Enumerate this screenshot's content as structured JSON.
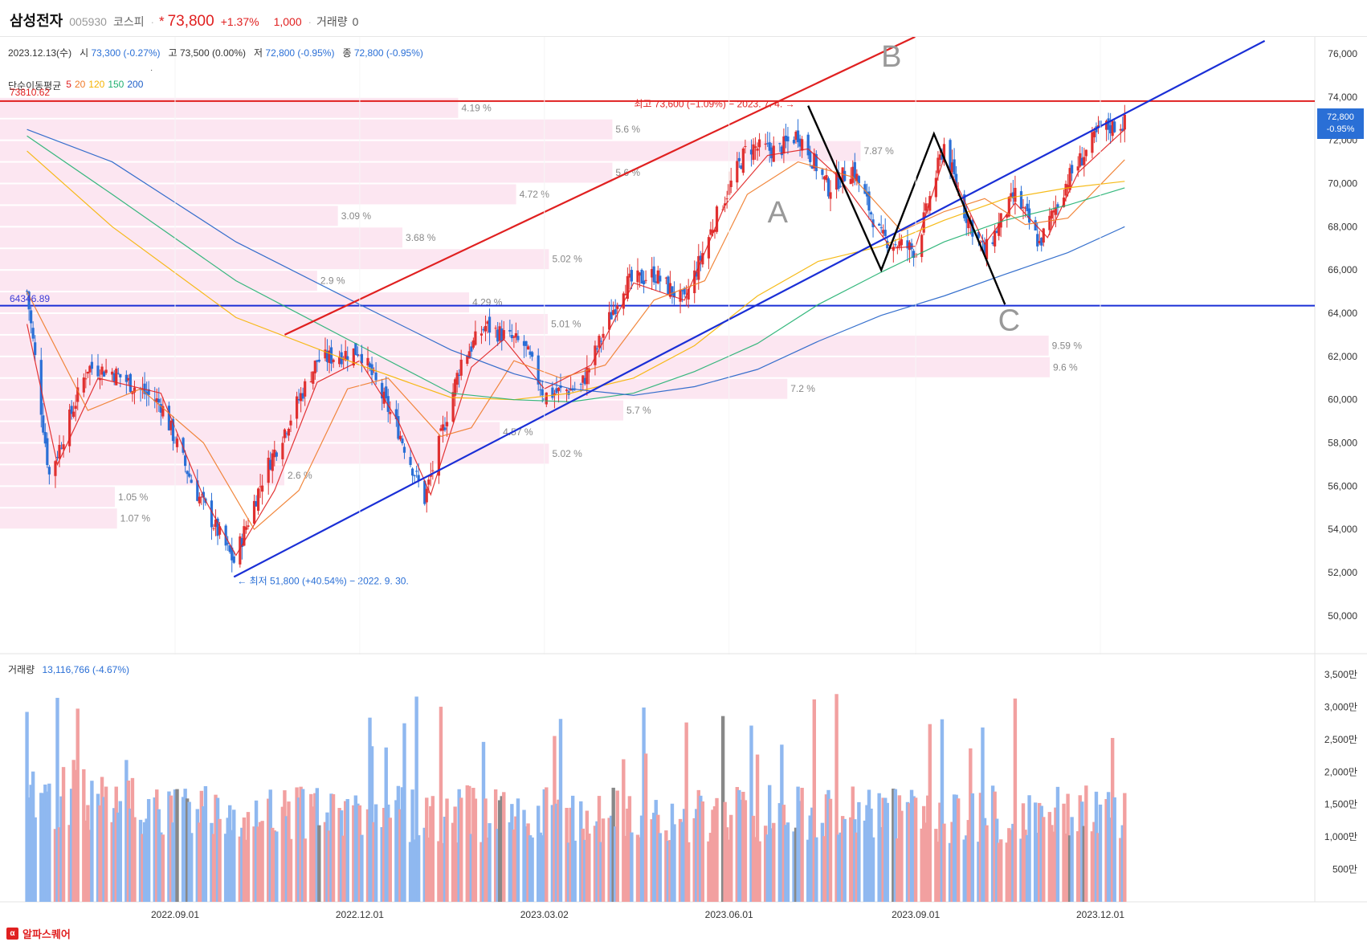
{
  "header": {
    "name": "삼성전자",
    "code": "005930",
    "market": "코스피",
    "separator": "·",
    "star": "*",
    "price": "73,800",
    "change_pct": "+1.37%",
    "change_abs": "1,000",
    "volume_label": "거래량",
    "volume_value": "0"
  },
  "ohlc": {
    "date": "2023.12.13(수)",
    "open_label": "시",
    "open_value": "73,300 (-0.27%)",
    "high_label": "고",
    "high_value": "73,500 (0.00%)",
    "low_label": "저",
    "low_value": "72,800 (-0.95%)",
    "close_label": "종",
    "close_value": "72,800 (-0.95%)"
  },
  "ma_legend": {
    "title": "단순이동평균",
    "periods": [
      {
        "label": "5",
        "color": "#e02020"
      },
      {
        "label": "20",
        "color": "#f07a28"
      },
      {
        "label": "120",
        "color": "#f5b400"
      },
      {
        "label": "150",
        "color": "#20b070"
      },
      {
        "label": "200",
        "color": "#2060c8"
      }
    ]
  },
  "upper_line_label": "73810.62",
  "lower_line_label": "64346.89",
  "last_price_badge": {
    "price": "72,800",
    "change": "-0.95%"
  },
  "volume_legend": {
    "label": "거래량",
    "value": "13,116,766 (-4.67%)"
  },
  "footer": {
    "brand": "알파스퀘어",
    "logo": "α"
  },
  "colors": {
    "up": "#e03030",
    "down": "#2a6fd6",
    "trend_up": "#e02020",
    "trend_blue": "#1a2fd6",
    "pattern": "#000000",
    "profile": "#fce6f1",
    "vol_up": "#f2a0a0",
    "vol_down": "#8fb8f0",
    "vol_gray": "#888888"
  },
  "chart_data": {
    "type": "candlestick",
    "title": "",
    "x_ticks": [
      "2022.09.01",
      "2022.12.01",
      "2023.03.02",
      "2023.06.01",
      "2023.09.01",
      "2023.12.01"
    ],
    "y_ticks": [
      "76,000",
      "74,000",
      "72,000",
      "70,000",
      "68,000",
      "66,000",
      "64,000",
      "62,000",
      "60,000",
      "58,000",
      "56,000",
      "54,000",
      "52,000",
      "50,000"
    ],
    "ylim": [
      49000,
      77000
    ],
    "price_anchors": [
      [
        "2022.06.20",
        65000
      ],
      [
        "2022.07.01",
        56500
      ],
      [
        "2022.07.20",
        61500
      ],
      [
        "2022.08.01",
        61300
      ],
      [
        "2022.08.25",
        59800
      ],
      [
        "2022.09.10",
        56000
      ],
      [
        "2022.09.30",
        52500
      ],
      [
        "2022.10.15",
        56600
      ],
      [
        "2022.11.10",
        61800
      ],
      [
        "2022.12.01",
        62300
      ],
      [
        "2022.12.20",
        58600
      ],
      [
        "2023.01.02",
        55400
      ],
      [
        "2023.01.20",
        61800
      ],
      [
        "2023.02.01",
        63400
      ],
      [
        "2023.02.20",
        62500
      ],
      [
        "2023.03.02",
        60200
      ],
      [
        "2023.03.20",
        60600
      ],
      [
        "2023.04.10",
        65300
      ],
      [
        "2023.04.25",
        65800
      ],
      [
        "2023.05.10",
        64500
      ],
      [
        "2023.05.25",
        68300
      ],
      [
        "2023.06.10",
        71700
      ],
      [
        "2023.06.25",
        71500
      ],
      [
        "2023.07.05",
        72300
      ],
      [
        "2023.07.20",
        69800
      ],
      [
        "2023.08.01",
        70700
      ],
      [
        "2023.08.15",
        67500
      ],
      [
        "2023.09.01",
        66900
      ],
      [
        "2023.09.15",
        71800
      ],
      [
        "2023.09.25",
        68700
      ],
      [
        "2023.10.05",
        66800
      ],
      [
        "2023.10.20",
        69500
      ],
      [
        "2023.11.01",
        67200
      ],
      [
        "2023.11.15",
        70200
      ],
      [
        "2023.12.01",
        72500
      ],
      [
        "2023.12.13",
        72800
      ]
    ],
    "sma": {
      "5": [
        [
          "2022.06.20",
          63500
        ],
        [
          "2022.07.05",
          57000
        ],
        [
          "2022.07.25",
          61000
        ],
        [
          "2022.08.25",
          60300
        ],
        [
          "2022.09.15",
          55500
        ],
        [
          "2022.10.01",
          52800
        ],
        [
          "2022.10.20",
          55800
        ],
        [
          "2022.11.10",
          60800
        ],
        [
          "2022.12.01",
          61800
        ],
        [
          "2022.12.20",
          59000
        ],
        [
          "2023.01.05",
          55600
        ],
        [
          "2023.01.25",
          61500
        ],
        [
          "2023.02.10",
          62800
        ],
        [
          "2023.03.02",
          60500
        ],
        [
          "2023.03.25",
          61600
        ],
        [
          "2023.04.15",
          65400
        ],
        [
          "2023.05.10",
          64600
        ],
        [
          "2023.05.30",
          69000
        ],
        [
          "2023.06.20",
          71300
        ],
        [
          "2023.07.10",
          71600
        ],
        [
          "2023.07.25",
          70300
        ],
        [
          "2023.08.20",
          67000
        ],
        [
          "2023.09.01",
          67100
        ],
        [
          "2023.09.15",
          71200
        ],
        [
          "2023.10.05",
          67200
        ],
        [
          "2023.10.20",
          69100
        ],
        [
          "2023.11.05",
          67500
        ],
        [
          "2023.11.20",
          70500
        ],
        [
          "2023.12.13",
          72500
        ]
      ],
      "20": [
        [
          "2022.06.20",
          65000
        ],
        [
          "2022.07.20",
          59500
        ],
        [
          "2022.08.15",
          60500
        ],
        [
          "2022.09.15",
          58000
        ],
        [
          "2022.10.10",
          54000
        ],
        [
          "2022.11.01",
          55800
        ],
        [
          "2022.11.25",
          60500
        ],
        [
          "2022.12.15",
          61000
        ],
        [
          "2023.01.10",
          58300
        ],
        [
          "2023.01.25",
          58700
        ],
        [
          "2023.02.15",
          61800
        ],
        [
          "2023.03.10",
          61000
        ],
        [
          "2023.04.01",
          61600
        ],
        [
          "2023.04.25",
          64600
        ],
        [
          "2023.05.20",
          65500
        ],
        [
          "2023.06.10",
          69500
        ],
        [
          "2023.07.05",
          71000
        ],
        [
          "2023.08.01",
          70300
        ],
        [
          "2023.08.25",
          67800
        ],
        [
          "2023.09.15",
          68700
        ],
        [
          "2023.10.05",
          69300
        ],
        [
          "2023.10.25",
          68100
        ],
        [
          "2023.11.15",
          68400
        ],
        [
          "2023.12.13",
          71100
        ]
      ],
      "120": [
        [
          "2022.06.20",
          71500
        ],
        [
          "2022.08.01",
          68000
        ],
        [
          "2022.10.01",
          63800
        ],
        [
          "2022.12.01",
          61600
        ],
        [
          "2023.01.15",
          60100
        ],
        [
          "2023.02.15",
          60000
        ],
        [
          "2023.03.15",
          60300
        ],
        [
          "2023.04.15",
          61000
        ],
        [
          "2023.05.15",
          62500
        ],
        [
          "2023.06.15",
          64800
        ],
        [
          "2023.07.15",
          66400
        ],
        [
          "2023.08.15",
          67100
        ],
        [
          "2023.09.15",
          68300
        ],
        [
          "2023.10.15",
          69300
        ],
        [
          "2023.11.15",
          69800
        ],
        [
          "2023.12.13",
          70100
        ]
      ],
      "150": [
        [
          "2022.06.20",
          72200
        ],
        [
          "2022.08.01",
          69500
        ],
        [
          "2022.10.01",
          65500
        ],
        [
          "2022.12.01",
          62500
        ],
        [
          "2023.01.15",
          60300
        ],
        [
          "2023.02.15",
          60000
        ],
        [
          "2023.03.15",
          59900
        ],
        [
          "2023.04.15",
          60300
        ],
        [
          "2023.05.15",
          61300
        ],
        [
          "2023.06.15",
          62600
        ],
        [
          "2023.07.15",
          64400
        ],
        [
          "2023.08.15",
          65900
        ],
        [
          "2023.09.15",
          67300
        ],
        [
          "2023.10.15",
          68300
        ],
        [
          "2023.11.15",
          69000
        ],
        [
          "2023.12.13",
          69800
        ]
      ],
      "200": [
        [
          "2022.06.20",
          72500
        ],
        [
          "2022.08.01",
          71000
        ],
        [
          "2022.10.01",
          67300
        ],
        [
          "2022.12.01",
          64400
        ],
        [
          "2023.01.15",
          62300
        ],
        [
          "2023.02.15",
          61200
        ],
        [
          "2023.03.15",
          60500
        ],
        [
          "2023.04.15",
          60200
        ],
        [
          "2023.05.15",
          60600
        ],
        [
          "2023.06.15",
          61400
        ],
        [
          "2023.07.15",
          62700
        ],
        [
          "2023.08.15",
          63900
        ],
        [
          "2023.09.15",
          64800
        ],
        [
          "2023.10.15",
          65800
        ],
        [
          "2023.11.15",
          66800
        ],
        [
          "2023.12.13",
          68000
        ]
      ]
    },
    "volume_profile": [
      {
        "low": 73000,
        "high": 74000,
        "pct": "4.19 %",
        "share": 4.19
      },
      {
        "low": 72000,
        "high": 73000,
        "pct": "5.6 %",
        "share": 5.6
      },
      {
        "low": 71000,
        "high": 72000,
        "pct": "7.87 %",
        "share": 7.87
      },
      {
        "low": 70000,
        "high": 71000,
        "pct": "5.6 %",
        "share": 5.6
      },
      {
        "low": 69000,
        "high": 70000,
        "pct": "4.72 %",
        "share": 4.72
      },
      {
        "low": 68000,
        "high": 69000,
        "pct": "3.09 %",
        "share": 3.09
      },
      {
        "low": 67000,
        "high": 68000,
        "pct": "3.68 %",
        "share": 3.68
      },
      {
        "low": 66000,
        "high": 67000,
        "pct": "5.02 %",
        "share": 5.02
      },
      {
        "low": 65000,
        "high": 66000,
        "pct": "2.9 %",
        "share": 2.9
      },
      {
        "low": 64000,
        "high": 65000,
        "pct": "4.29 %",
        "share": 4.29
      },
      {
        "low": 63000,
        "high": 64000,
        "pct": "5.01 %",
        "share": 5.01
      },
      {
        "low": 62000,
        "high": 63000,
        "pct": "9.59 %",
        "share": 9.59
      },
      {
        "low": 61000,
        "high": 62000,
        "pct": "9.6 %",
        "share": 9.6
      },
      {
        "low": 60000,
        "high": 61000,
        "pct": "7.2 %",
        "share": 7.2
      },
      {
        "low": 59000,
        "high": 60000,
        "pct": "5.7 %",
        "share": 5.7
      },
      {
        "low": 58000,
        "high": 59000,
        "pct": "4.57 %",
        "share": 4.57
      },
      {
        "low": 57000,
        "high": 58000,
        "pct": "5.02 %",
        "share": 5.02
      },
      {
        "low": 56000,
        "high": 57000,
        "pct": "2.6 %",
        "share": 2.6
      },
      {
        "low": 55000,
        "high": 56000,
        "pct": "1.05 %",
        "share": 1.05
      },
      {
        "low": 54000,
        "high": 55000,
        "pct": "1.07 %",
        "share": 1.07
      }
    ],
    "horizontal_lines": [
      {
        "value": 73810.62,
        "color": "#e02020"
      },
      {
        "value": 64346.89,
        "color": "#1a2fd6"
      }
    ],
    "trendlines": [
      {
        "color": "#e02020",
        "from": [
          "2022.10.25",
          63000
        ],
        "to": [
          "2023.09.01",
          76800
        ]
      },
      {
        "color": "#1a2fd6",
        "from": [
          "2022.09.30",
          51800
        ],
        "to": [
          "2024.02.20",
          76600
        ]
      }
    ],
    "pattern": {
      "points": [
        [
          "2023.07.10",
          73600
        ],
        [
          "2023.08.15",
          66000
        ],
        [
          "2023.09.10",
          72300
        ],
        [
          "2023.10.15",
          64400
        ]
      ],
      "labels": [
        {
          "text": "A",
          "at": [
            "2023.06.25",
            68200
          ]
        },
        {
          "text": "B",
          "at": [
            "2023.08.20",
            75400
          ]
        },
        {
          "text": "C",
          "at": [
            "2023.10.17",
            63200
          ]
        }
      ]
    },
    "annotations": [
      {
        "text": "최고 73,600 (−1.09%) − 2023. 7. 4. →",
        "at": [
          "2023.07.05",
          73600
        ],
        "color": "#e02020"
      },
      {
        "text": "← 최저 51,800 (+40.54%) − 2022. 9. 30.",
        "at": [
          "2022.09.30",
          51800
        ],
        "color": "#2a6fd6"
      }
    ],
    "volume": {
      "title": "거래량",
      "y_ticks": [
        "3,500만",
        "3,000만",
        "2,500만",
        "2,000만",
        "1,500만",
        "1,000만",
        "500만"
      ],
      "ylim": [
        0,
        37000000
      ]
    }
  }
}
